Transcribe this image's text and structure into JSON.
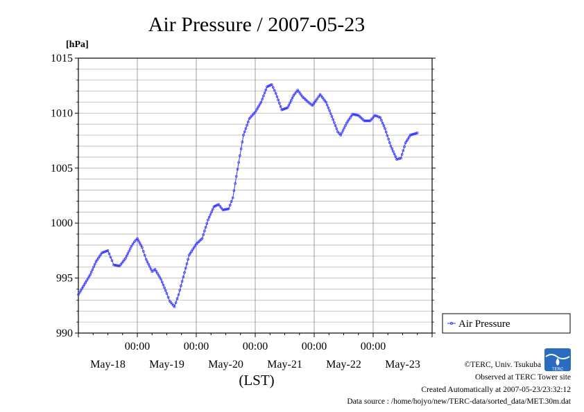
{
  "chart_data": {
    "type": "line",
    "title": "Air Pressure / 2007-05-23",
    "ylabel": "[hPa]",
    "xlabel": "(LST)",
    "ylim": [
      990,
      1015
    ],
    "yticks": [
      "990",
      "995",
      "1000",
      "1005",
      "1010",
      "1015"
    ],
    "xlim_days": [
      0,
      6
    ],
    "xtick_times": [
      "00:00",
      "00:00",
      "00:00",
      "00:00",
      "00:00"
    ],
    "xtick_dates": [
      "May-18",
      "May-19",
      "May-20",
      "May-21",
      "May-22",
      "May-23"
    ],
    "grid": true,
    "legend_position": "right",
    "series": [
      {
        "name": "Air Pressure",
        "color": "#3333ff",
        "marker": "circle",
        "points": [
          [
            0.0,
            993.5
          ],
          [
            0.2,
            995.3
          ],
          [
            0.3,
            996.5
          ],
          [
            0.4,
            997.3
          ],
          [
            0.5,
            997.5
          ],
          [
            0.57,
            996.6
          ],
          [
            0.6,
            996.2
          ],
          [
            0.7,
            996.1
          ],
          [
            0.8,
            996.8
          ],
          [
            0.9,
            997.9
          ],
          [
            0.95,
            998.3
          ],
          [
            1.0,
            998.6
          ],
          [
            1.08,
            997.8
          ],
          [
            1.15,
            996.7
          ],
          [
            1.25,
            995.6
          ],
          [
            1.3,
            995.8
          ],
          [
            1.4,
            994.9
          ],
          [
            1.5,
            993.6
          ],
          [
            1.55,
            992.9
          ],
          [
            1.63,
            992.4
          ],
          [
            1.7,
            993.5
          ],
          [
            1.8,
            995.5
          ],
          [
            1.88,
            997.1
          ],
          [
            2.0,
            998.1
          ],
          [
            2.1,
            998.6
          ],
          [
            2.2,
            1000.3
          ],
          [
            2.3,
            1001.5
          ],
          [
            2.38,
            1001.7
          ],
          [
            2.45,
            1001.2
          ],
          [
            2.55,
            1001.3
          ],
          [
            2.62,
            1002.3
          ],
          [
            2.7,
            1004.9
          ],
          [
            2.8,
            1008.0
          ],
          [
            2.9,
            1009.5
          ],
          [
            3.0,
            1010.1
          ],
          [
            3.1,
            1011.0
          ],
          [
            3.2,
            1012.4
          ],
          [
            3.28,
            1012.6
          ],
          [
            3.35,
            1011.8
          ],
          [
            3.45,
            1010.3
          ],
          [
            3.55,
            1010.5
          ],
          [
            3.65,
            1011.6
          ],
          [
            3.72,
            1012.1
          ],
          [
            3.8,
            1011.5
          ],
          [
            3.9,
            1011.0
          ],
          [
            3.97,
            1010.7
          ],
          [
            4.05,
            1011.3
          ],
          [
            4.1,
            1011.7
          ],
          [
            4.2,
            1011.0
          ],
          [
            4.3,
            1009.7
          ],
          [
            4.4,
            1008.3
          ],
          [
            4.45,
            1008.0
          ],
          [
            4.55,
            1009.1
          ],
          [
            4.65,
            1009.9
          ],
          [
            4.75,
            1009.8
          ],
          [
            4.85,
            1009.3
          ],
          [
            4.95,
            1009.3
          ],
          [
            5.03,
            1009.8
          ],
          [
            5.12,
            1009.6
          ],
          [
            5.2,
            1008.6
          ],
          [
            5.3,
            1007.0
          ],
          [
            5.4,
            1005.8
          ],
          [
            5.47,
            1005.9
          ],
          [
            5.55,
            1007.3
          ],
          [
            5.63,
            1008.0
          ],
          [
            5.75,
            1008.2
          ]
        ]
      }
    ]
  },
  "legend": {
    "label": "Air Pressure"
  },
  "footer": {
    "copyright": "©TERC, Univ. Tsukuba",
    "observed": "Observed at TERC Tower site",
    "created": "Created Automatically at 2007-05-23/23:32:12",
    "source": "Data source : /home/hojyo/new/TERC-data/sorted_data/MET.30m.dat"
  },
  "logo": {
    "text": "TERC",
    "color": "#2a6cc0"
  }
}
